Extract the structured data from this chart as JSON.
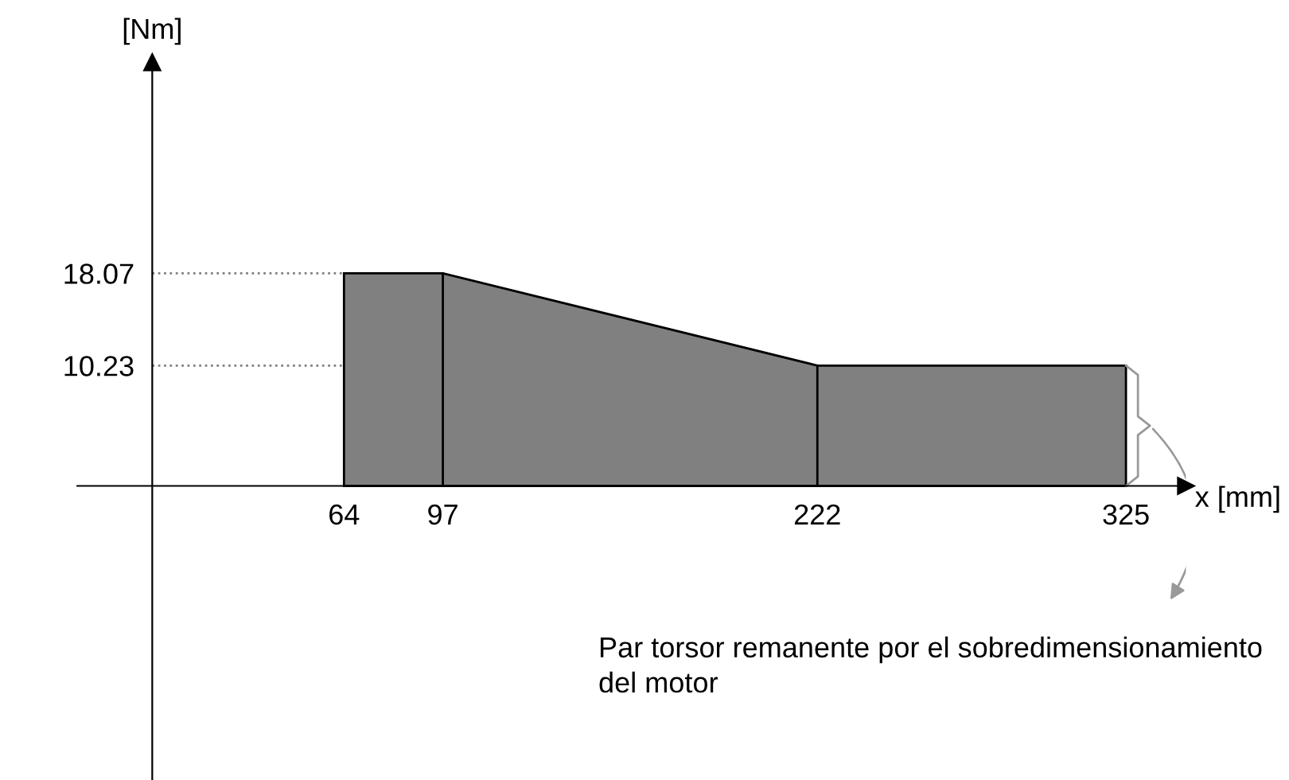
{
  "chart_data": {
    "type": "area",
    "x": [
      64,
      97,
      222,
      325
    ],
    "values": [
      18.07,
      18.07,
      10.23,
      10.23
    ],
    "color": "#808080",
    "xlabel": "x [mm]",
    "ylabel": "[Nm]",
    "xlim": [
      -25,
      345
    ],
    "ylim": [
      -25,
      36
    ],
    "xticks": [
      64,
      97,
      222,
      325
    ],
    "yticks": [
      10.23,
      18.07
    ],
    "grid": false,
    "ref_lines": [
      {
        "axis": "y",
        "value": 18.07,
        "color": "#808080",
        "line_style": "dotted"
      },
      {
        "axis": "y",
        "value": 10.23,
        "color": "#808080",
        "line_style": "dotted"
      },
      {
        "axis": "x",
        "value": 97,
        "color": "#000000",
        "line_style": "solid"
      },
      {
        "axis": "x",
        "value": 222,
        "color": "#000000",
        "line_style": "solid"
      }
    ],
    "annotations": [
      "Par torsor remanente por el sobredimensionamiento del motor"
    ]
  }
}
